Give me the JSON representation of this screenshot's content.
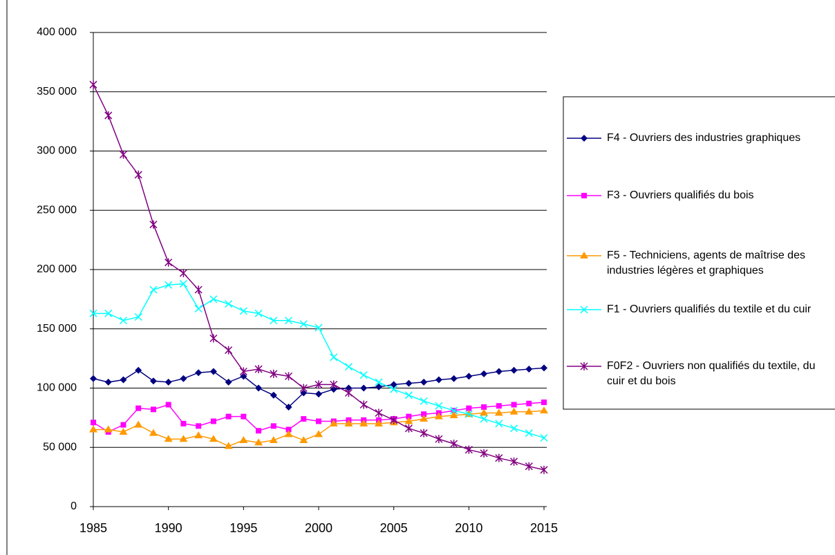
{
  "chart_data": {
    "type": "line",
    "x": [
      1985,
      1986,
      1987,
      1988,
      1989,
      1990,
      1991,
      1992,
      1993,
      1994,
      1995,
      1996,
      1997,
      1998,
      1999,
      2000,
      2001,
      2002,
      2003,
      2004,
      2005,
      2006,
      2007,
      2008,
      2009,
      2010,
      2011,
      2012,
      2013,
      2014,
      2015
    ],
    "xlim": [
      1985,
      2015
    ],
    "xticks": [
      1985,
      1990,
      1995,
      2000,
      2005,
      2010,
      2015
    ],
    "ylim": [
      0,
      400000
    ],
    "yticks": [
      0,
      {
        "value": 50000,
        "label": "50 000"
      },
      {
        "value": 100000,
        "label": "100 000"
      },
      {
        "value": 150000,
        "label": "150 000"
      },
      {
        "value": 200000,
        "label": "200 000"
      },
      {
        "value": 250000,
        "label": "250 000"
      },
      {
        "value": 300000,
        "label": "300 000"
      },
      {
        "value": 350000,
        "label": "350 000"
      },
      {
        "value": 400000,
        "label": "400 000"
      }
    ],
    "grid": true,
    "series": [
      {
        "name": "F4 - Ouvriers des industries graphiques",
        "color": "#000080",
        "marker": "diamond",
        "values": [
          108000,
          105000,
          107000,
          115000,
          106000,
          105000,
          108000,
          113000,
          114000,
          105000,
          110000,
          100000,
          94000,
          84000,
          96000,
          95000,
          99000,
          100000,
          100000,
          101000,
          103000,
          104000,
          105000,
          107000,
          108000,
          110000,
          112000,
          114000,
          115000,
          116000,
          117000
        ]
      },
      {
        "name": "F3 - Ouvriers qualifiés du bois",
        "color": "#ff00ff",
        "marker": "square",
        "values": [
          71000,
          63000,
          69000,
          83000,
          82000,
          86000,
          70000,
          68000,
          72000,
          76000,
          76000,
          64000,
          68000,
          65000,
          74000,
          72000,
          72000,
          73000,
          73000,
          73000,
          74000,
          76000,
          78000,
          79000,
          81000,
          83000,
          84000,
          85000,
          86000,
          87000,
          88000
        ]
      },
      {
        "name": "F5 - Techniciens, agents de maîtrise des industries légères et graphiques",
        "color": "#ff9900",
        "marker": "triangle",
        "values": [
          65000,
          65000,
          63000,
          69000,
          62000,
          57000,
          57000,
          60000,
          57000,
          51000,
          56000,
          54000,
          56000,
          61000,
          56000,
          61000,
          70000,
          70000,
          70000,
          70000,
          71000,
          72000,
          74000,
          76000,
          77000,
          78000,
          79000,
          79000,
          80000,
          80000,
          81000
        ]
      },
      {
        "name": "F1 - Ouvriers qualifiés du textile et du cuir",
        "color": "#00ffff",
        "marker": "x",
        "values": [
          163000,
          163000,
          157000,
          160000,
          183000,
          187000,
          188000,
          167000,
          175000,
          171000,
          165000,
          163000,
          157000,
          157000,
          154000,
          151000,
          126000,
          118000,
          111000,
          105000,
          99000,
          94000,
          89000,
          85000,
          81000,
          78000,
          74000,
          70000,
          66000,
          62000,
          58000
        ]
      },
      {
        "name": "F0F2 - Ouvriers non qualifiés du textile, du cuir et du bois",
        "color": "#800080",
        "marker": "star",
        "values": [
          356000,
          330000,
          297000,
          280000,
          238000,
          206000,
          197000,
          183000,
          142000,
          132000,
          114000,
          116000,
          112000,
          110000,
          100000,
          103000,
          103000,
          96000,
          86000,
          79000,
          73000,
          66000,
          62000,
          57000,
          53000,
          48000,
          45000,
          41000,
          38000,
          34000,
          31000
        ]
      }
    ]
  }
}
